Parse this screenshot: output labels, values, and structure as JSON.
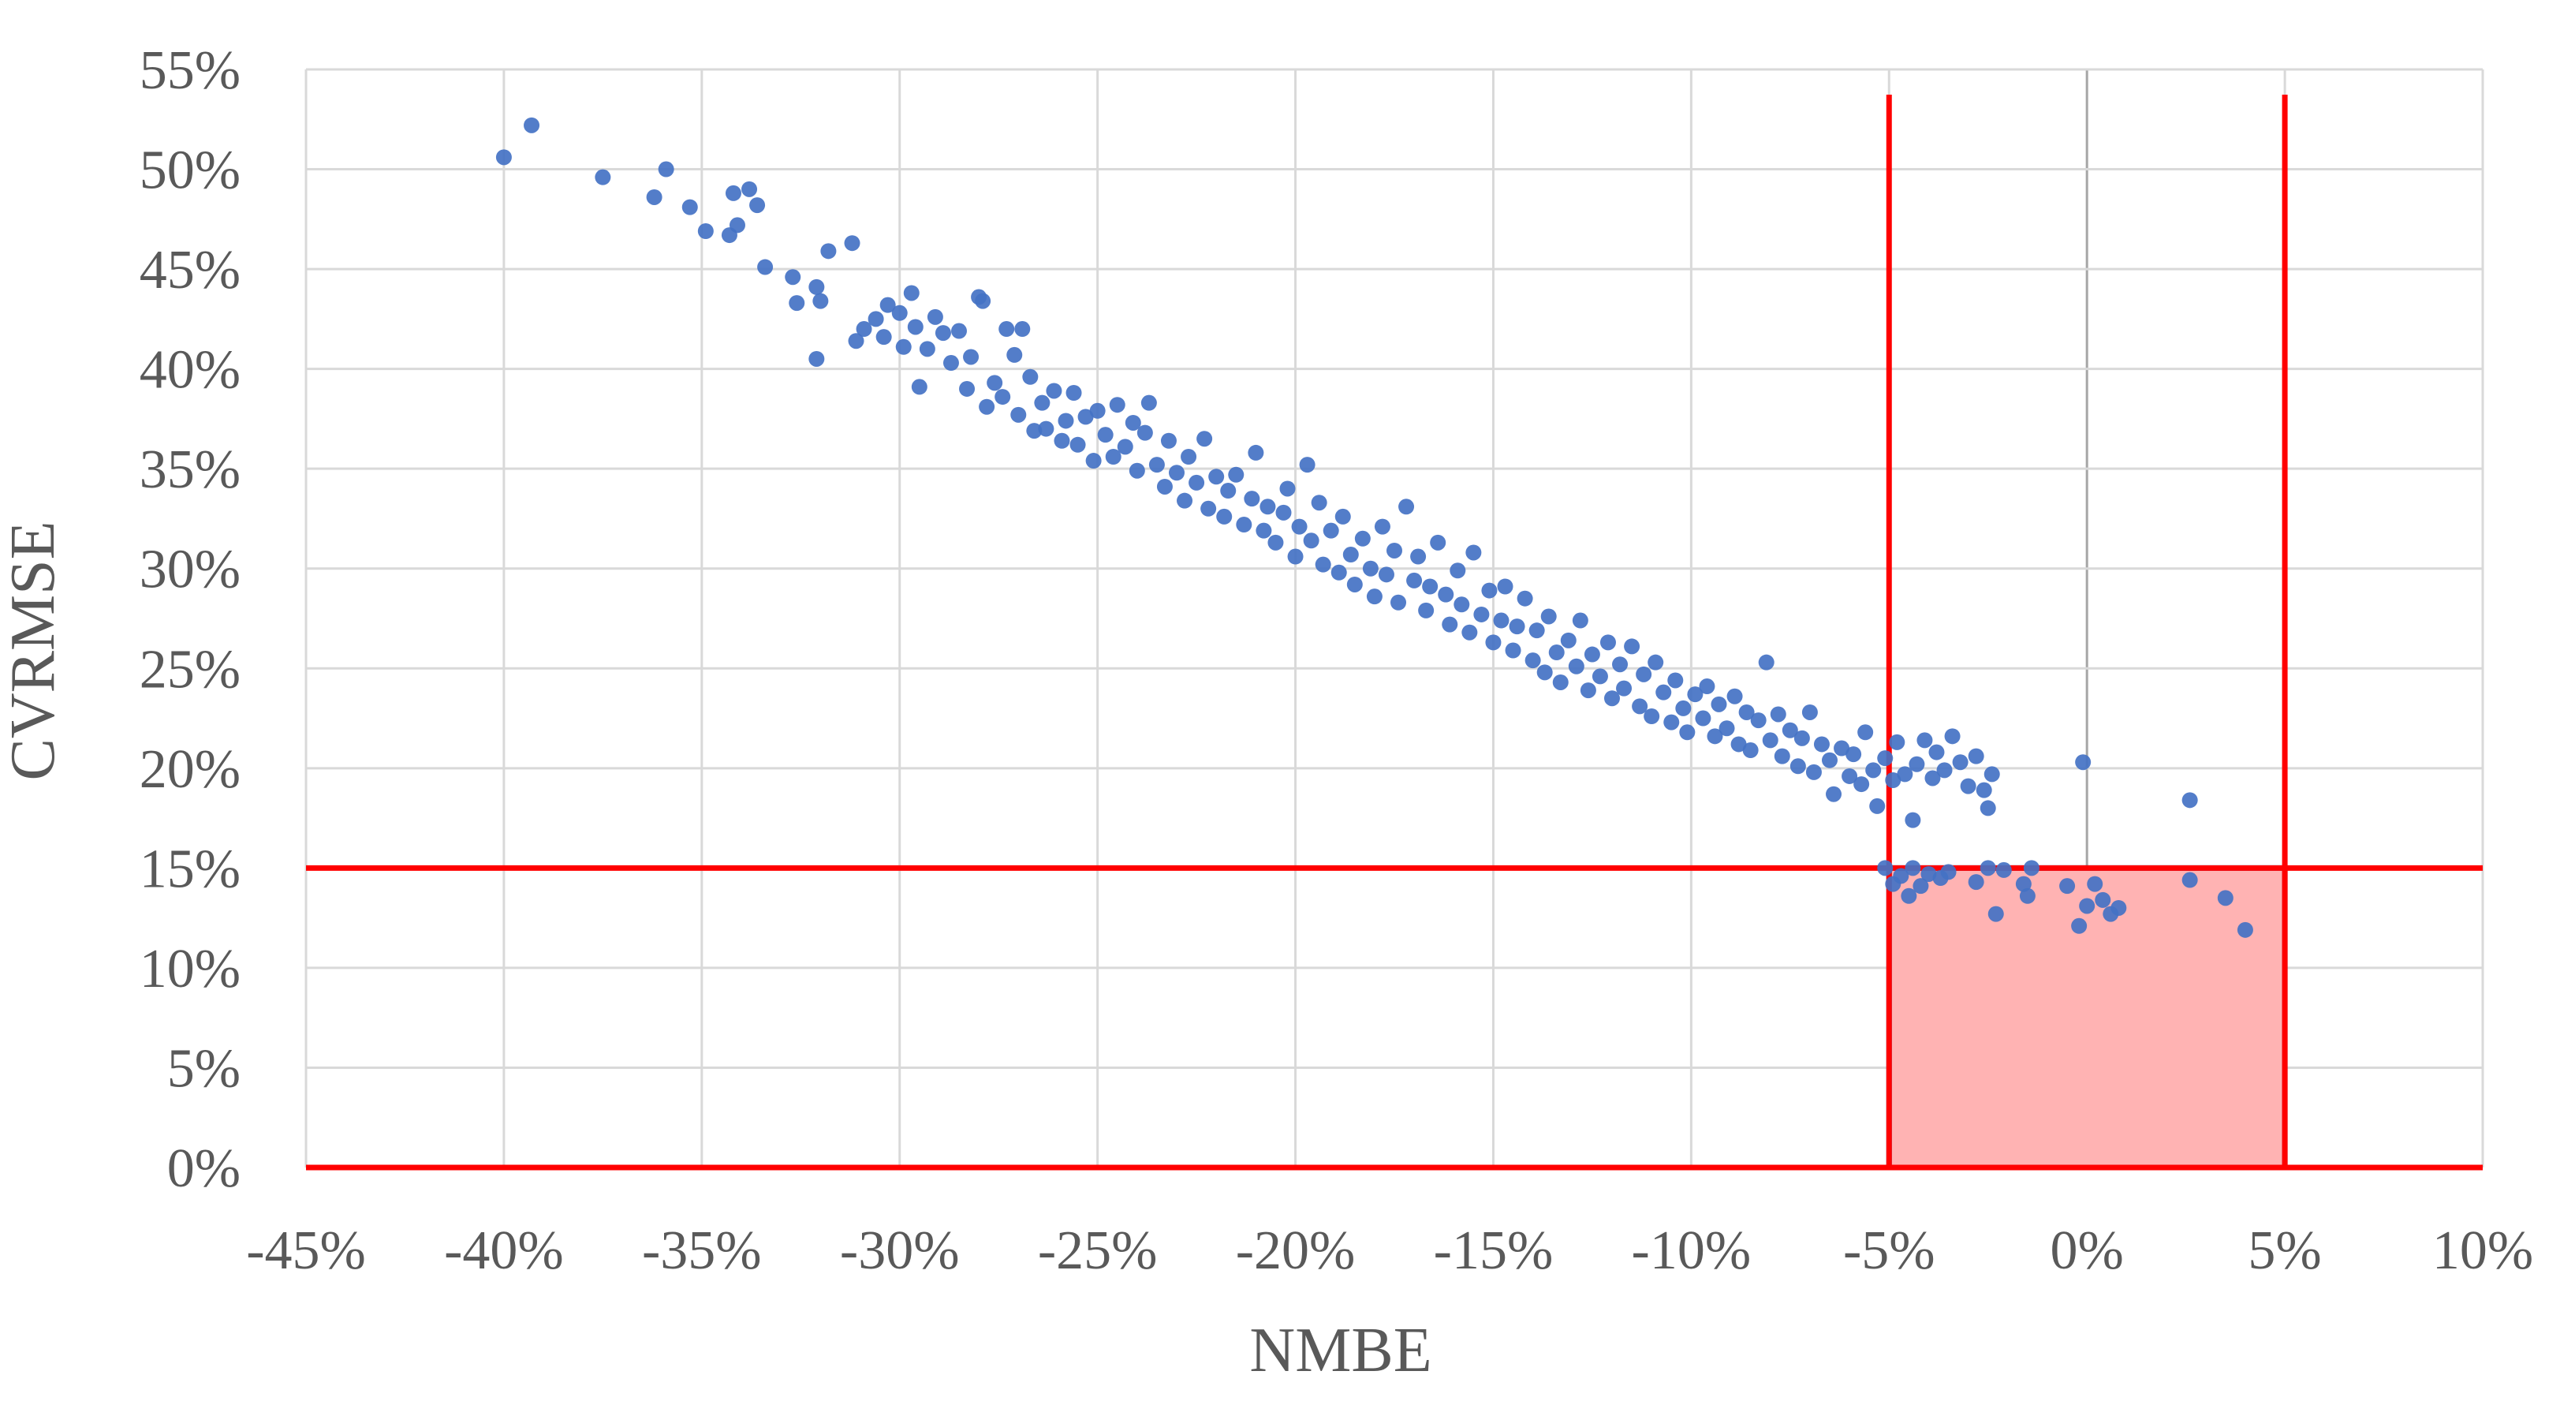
{
  "chart_data": {
    "type": "scatter",
    "xlabel": "NMBE",
    "ylabel": "CVRMSE",
    "xlim": [
      -45,
      10
    ],
    "ylim": [
      0,
      55
    ],
    "x_ticks": [
      {
        "value": -45,
        "label": "-45%"
      },
      {
        "value": -40,
        "label": "-40%"
      },
      {
        "value": -35,
        "label": "-35%"
      },
      {
        "value": -30,
        "label": "-30%"
      },
      {
        "value": -25,
        "label": "-25%"
      },
      {
        "value": -20,
        "label": "-20%"
      },
      {
        "value": -15,
        "label": "-15%"
      },
      {
        "value": -10,
        "label": "-10%"
      },
      {
        "value": -5,
        "label": "-5%"
      },
      {
        "value": 0,
        "label": "0%"
      },
      {
        "value": 5,
        "label": "5%"
      },
      {
        "value": 10,
        "label": "10%"
      }
    ],
    "y_ticks": [
      {
        "value": 0,
        "label": "0%"
      },
      {
        "value": 5,
        "label": "5%"
      },
      {
        "value": 10,
        "label": "10%"
      },
      {
        "value": 15,
        "label": "15%"
      },
      {
        "value": 20,
        "label": "20%"
      },
      {
        "value": 25,
        "label": "25%"
      },
      {
        "value": 30,
        "label": "30%"
      },
      {
        "value": 35,
        "label": "35%"
      },
      {
        "value": 40,
        "label": "40%"
      },
      {
        "value": 45,
        "label": "45%"
      },
      {
        "value": 50,
        "label": "50%"
      },
      {
        "value": 55,
        "label": "55%"
      }
    ],
    "grid": true,
    "colors": {
      "points": "#4472c4",
      "threshold_lines": "#ff0000",
      "zone_fill": "#ffb3b3",
      "zone_border": "#2f5597",
      "grid": "#d9d9d9",
      "text": "#595959"
    },
    "threshold_lines": {
      "x": [
        -5,
        5
      ],
      "y": [
        0,
        15
      ]
    },
    "acceptance_zone": {
      "x": [
        -5,
        5
      ],
      "y": [
        0,
        15
      ]
    },
    "points": [
      [
        -40.0,
        50.6
      ],
      [
        -39.3,
        52.2
      ],
      [
        -37.5,
        49.6
      ],
      [
        -36.2,
        48.6
      ],
      [
        -35.9,
        50.0
      ],
      [
        -35.3,
        48.1
      ],
      [
        -34.9,
        46.9
      ],
      [
        -34.3,
        46.7
      ],
      [
        -34.2,
        48.8
      ],
      [
        -34.1,
        47.2
      ],
      [
        -33.8,
        49.0
      ],
      [
        -33.6,
        48.2
      ],
      [
        -33.4,
        45.1
      ],
      [
        -32.7,
        44.6
      ],
      [
        -32.6,
        43.3
      ],
      [
        -32.1,
        44.1
      ],
      [
        -32.0,
        43.4
      ],
      [
        -32.1,
        40.5
      ],
      [
        -31.8,
        45.9
      ],
      [
        -31.2,
        46.3
      ],
      [
        -31.1,
        41.4
      ],
      [
        -30.9,
        42.0
      ],
      [
        -30.6,
        42.5
      ],
      [
        -30.4,
        41.6
      ],
      [
        -30.3,
        43.2
      ],
      [
        -30.0,
        42.8
      ],
      [
        -29.9,
        41.1
      ],
      [
        -29.7,
        43.8
      ],
      [
        -29.6,
        42.1
      ],
      [
        -29.5,
        39.1
      ],
      [
        -29.3,
        41.0
      ],
      [
        -29.1,
        42.6
      ],
      [
        -28.9,
        41.8
      ],
      [
        -28.7,
        40.3
      ],
      [
        -28.5,
        41.9
      ],
      [
        -28.3,
        39.0
      ],
      [
        -28.2,
        40.6
      ],
      [
        -28.0,
        43.6
      ],
      [
        -27.9,
        43.4
      ],
      [
        -27.8,
        38.1
      ],
      [
        -27.6,
        39.3
      ],
      [
        -27.4,
        38.6
      ],
      [
        -27.3,
        42.0
      ],
      [
        -27.1,
        40.7
      ],
      [
        -27.0,
        37.7
      ],
      [
        -26.9,
        42.0
      ],
      [
        -26.7,
        39.6
      ],
      [
        -26.6,
        36.9
      ],
      [
        -26.4,
        38.3
      ],
      [
        -26.3,
        37.0
      ],
      [
        -26.1,
        38.9
      ],
      [
        -25.9,
        36.4
      ],
      [
        -25.8,
        37.4
      ],
      [
        -25.6,
        38.8
      ],
      [
        -25.5,
        36.2
      ],
      [
        -25.3,
        37.6
      ],
      [
        -25.1,
        35.4
      ],
      [
        -25.0,
        37.9
      ],
      [
        -24.8,
        36.7
      ],
      [
        -24.6,
        35.6
      ],
      [
        -24.5,
        38.2
      ],
      [
        -24.3,
        36.1
      ],
      [
        -24.1,
        37.3
      ],
      [
        -24.0,
        34.9
      ],
      [
        -23.8,
        36.8
      ],
      [
        -23.7,
        38.3
      ],
      [
        -23.5,
        35.2
      ],
      [
        -23.3,
        34.1
      ],
      [
        -23.2,
        36.4
      ],
      [
        -23.0,
        34.8
      ],
      [
        -22.8,
        33.4
      ],
      [
        -22.7,
        35.6
      ],
      [
        -22.5,
        34.3
      ],
      [
        -22.3,
        36.5
      ],
      [
        -22.2,
        33.0
      ],
      [
        -22.0,
        34.6
      ],
      [
        -21.8,
        32.6
      ],
      [
        -21.7,
        33.9
      ],
      [
        -21.5,
        34.7
      ],
      [
        -21.3,
        32.2
      ],
      [
        -21.1,
        33.5
      ],
      [
        -21.0,
        35.8
      ],
      [
        -20.8,
        31.9
      ],
      [
        -20.7,
        33.1
      ],
      [
        -20.5,
        31.3
      ],
      [
        -20.3,
        32.8
      ],
      [
        -20.2,
        34.0
      ],
      [
        -20.0,
        30.6
      ],
      [
        -19.9,
        32.1
      ],
      [
        -19.7,
        35.2
      ],
      [
        -19.6,
        31.4
      ],
      [
        -19.4,
        33.3
      ],
      [
        -19.3,
        30.2
      ],
      [
        -19.1,
        31.9
      ],
      [
        -18.9,
        29.8
      ],
      [
        -18.8,
        32.6
      ],
      [
        -18.6,
        30.7
      ],
      [
        -18.5,
        29.2
      ],
      [
        -18.3,
        31.5
      ],
      [
        -18.1,
        30.0
      ],
      [
        -18.0,
        28.6
      ],
      [
        -17.8,
        32.1
      ],
      [
        -17.7,
        29.7
      ],
      [
        -17.5,
        30.9
      ],
      [
        -17.4,
        28.3
      ],
      [
        -17.2,
        33.1
      ],
      [
        -17.0,
        29.4
      ],
      [
        -16.9,
        30.6
      ],
      [
        -16.7,
        27.9
      ],
      [
        -16.6,
        29.1
      ],
      [
        -16.4,
        31.3
      ],
      [
        -16.2,
        28.7
      ],
      [
        -16.1,
        27.2
      ],
      [
        -15.9,
        29.9
      ],
      [
        -15.8,
        28.2
      ],
      [
        -15.6,
        26.8
      ],
      [
        -15.5,
        30.8
      ],
      [
        -15.3,
        27.7
      ],
      [
        -15.1,
        28.9
      ],
      [
        -15.0,
        26.3
      ],
      [
        -14.8,
        27.4
      ],
      [
        -14.7,
        29.1
      ],
      [
        -14.5,
        25.9
      ],
      [
        -14.4,
        27.1
      ],
      [
        -14.2,
        28.5
      ],
      [
        -14.0,
        25.4
      ],
      [
        -13.9,
        26.9
      ],
      [
        -13.7,
        24.8
      ],
      [
        -13.6,
        27.6
      ],
      [
        -13.4,
        25.8
      ],
      [
        -13.3,
        24.3
      ],
      [
        -13.1,
        26.4
      ],
      [
        -12.9,
        25.1
      ],
      [
        -12.8,
        27.4
      ],
      [
        -12.6,
        23.9
      ],
      [
        -12.5,
        25.7
      ],
      [
        -12.3,
        24.6
      ],
      [
        -12.1,
        26.3
      ],
      [
        -12.0,
        23.5
      ],
      [
        -11.8,
        25.2
      ],
      [
        -11.7,
        24.0
      ],
      [
        -11.5,
        26.1
      ],
      [
        -11.3,
        23.1
      ],
      [
        -11.2,
        24.7
      ],
      [
        -11.0,
        22.6
      ],
      [
        -10.9,
        25.3
      ],
      [
        -10.7,
        23.8
      ],
      [
        -10.5,
        22.3
      ],
      [
        -10.4,
        24.4
      ],
      [
        -10.2,
        23.0
      ],
      [
        -10.1,
        21.8
      ],
      [
        -9.9,
        23.7
      ],
      [
        -9.7,
        22.5
      ],
      [
        -9.6,
        24.1
      ],
      [
        -9.4,
        21.6
      ],
      [
        -9.3,
        23.2
      ],
      [
        -9.1,
        22.0
      ],
      [
        -8.9,
        23.6
      ],
      [
        -8.8,
        21.2
      ],
      [
        -8.6,
        22.8
      ],
      [
        -8.5,
        20.9
      ],
      [
        -8.3,
        22.4
      ],
      [
        -8.1,
        25.3
      ],
      [
        -8.0,
        21.4
      ],
      [
        -7.8,
        22.7
      ],
      [
        -7.7,
        20.6
      ],
      [
        -7.5,
        21.9
      ],
      [
        -7.3,
        20.1
      ],
      [
        -7.2,
        21.5
      ],
      [
        -7.0,
        22.8
      ],
      [
        -6.9,
        19.8
      ],
      [
        -6.7,
        21.2
      ],
      [
        -6.5,
        20.4
      ],
      [
        -6.4,
        18.7
      ],
      [
        -6.2,
        21.0
      ],
      [
        -6.0,
        19.6
      ],
      [
        -5.9,
        20.7
      ],
      [
        -5.7,
        19.2
      ],
      [
        -5.6,
        21.8
      ],
      [
        -5.4,
        19.9
      ],
      [
        -5.3,
        18.1
      ],
      [
        -5.1,
        20.5
      ],
      [
        -4.9,
        19.4
      ],
      [
        -4.8,
        21.3
      ],
      [
        -4.6,
        19.7
      ],
      [
        -4.4,
        17.4
      ],
      [
        -4.3,
        20.2
      ],
      [
        -4.1,
        21.4
      ],
      [
        -3.9,
        19.5
      ],
      [
        -3.8,
        20.8
      ],
      [
        -3.6,
        19.9
      ],
      [
        -3.4,
        21.6
      ],
      [
        -3.2,
        20.3
      ],
      [
        -3.0,
        19.1
      ],
      [
        -2.8,
        20.6
      ],
      [
        -2.6,
        18.9
      ],
      [
        -2.4,
        19.7
      ],
      [
        -2.5,
        18.0
      ],
      [
        -0.1,
        20.3
      ],
      [
        2.6,
        18.4
      ],
      [
        -5.1,
        15.0
      ],
      [
        -4.9,
        14.2
      ],
      [
        -4.7,
        14.6
      ],
      [
        -4.5,
        13.6
      ],
      [
        -4.4,
        15.0
      ],
      [
        -4.2,
        14.1
      ],
      [
        -4.0,
        14.7
      ],
      [
        -3.7,
        14.5
      ],
      [
        -3.5,
        14.8
      ],
      [
        -2.8,
        14.3
      ],
      [
        -2.5,
        15.0
      ],
      [
        -2.3,
        12.7
      ],
      [
        -2.1,
        14.9
      ],
      [
        -1.6,
        14.2
      ],
      [
        -1.5,
        13.6
      ],
      [
        -1.4,
        15.0
      ],
      [
        -0.5,
        14.1
      ],
      [
        -0.2,
        12.1
      ],
      [
        0.0,
        13.1
      ],
      [
        0.2,
        14.2
      ],
      [
        0.4,
        13.4
      ],
      [
        0.6,
        12.7
      ],
      [
        0.8,
        13.0
      ],
      [
        2.6,
        14.4
      ],
      [
        3.5,
        13.5
      ],
      [
        4.0,
        11.9
      ]
    ]
  }
}
